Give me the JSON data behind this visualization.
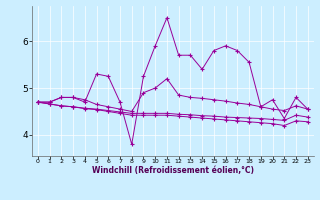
{
  "xlabel": "Windchill (Refroidissement éolien,°C)",
  "background_color": "#cceeff",
  "line_color": "#990099",
  "xlim": [
    -0.5,
    23.5
  ],
  "ylim": [
    3.55,
    6.75
  ],
  "xticks": [
    0,
    1,
    2,
    3,
    4,
    5,
    6,
    7,
    8,
    9,
    10,
    11,
    12,
    13,
    14,
    15,
    16,
    17,
    18,
    19,
    20,
    21,
    22,
    23
  ],
  "yticks": [
    4,
    5,
    6
  ],
  "grid_color": "#ffffff",
  "lines": [
    [
      4.7,
      4.7,
      4.8,
      4.8,
      4.7,
      5.3,
      5.25,
      4.7,
      3.8,
      5.25,
      5.9,
      6.5,
      5.7,
      5.7,
      5.4,
      5.8,
      5.9,
      5.8,
      5.55,
      4.6,
      4.75,
      4.35,
      4.8,
      4.55
    ],
    [
      4.7,
      4.7,
      4.8,
      4.8,
      4.75,
      4.65,
      4.6,
      4.55,
      4.5,
      4.9,
      5.0,
      5.2,
      4.85,
      4.8,
      4.78,
      4.75,
      4.72,
      4.68,
      4.65,
      4.6,
      4.55,
      4.52,
      4.62,
      4.55
    ],
    [
      4.7,
      4.66,
      4.62,
      4.6,
      4.56,
      4.54,
      4.5,
      4.46,
      4.42,
      4.42,
      4.42,
      4.42,
      4.4,
      4.38,
      4.36,
      4.34,
      4.32,
      4.3,
      4.28,
      4.26,
      4.24,
      4.2,
      4.3,
      4.28
    ],
    [
      4.7,
      4.66,
      4.62,
      4.6,
      4.57,
      4.55,
      4.52,
      4.49,
      4.46,
      4.46,
      4.46,
      4.46,
      4.44,
      4.43,
      4.41,
      4.4,
      4.38,
      4.37,
      4.36,
      4.35,
      4.33,
      4.31,
      4.42,
      4.38
    ]
  ]
}
